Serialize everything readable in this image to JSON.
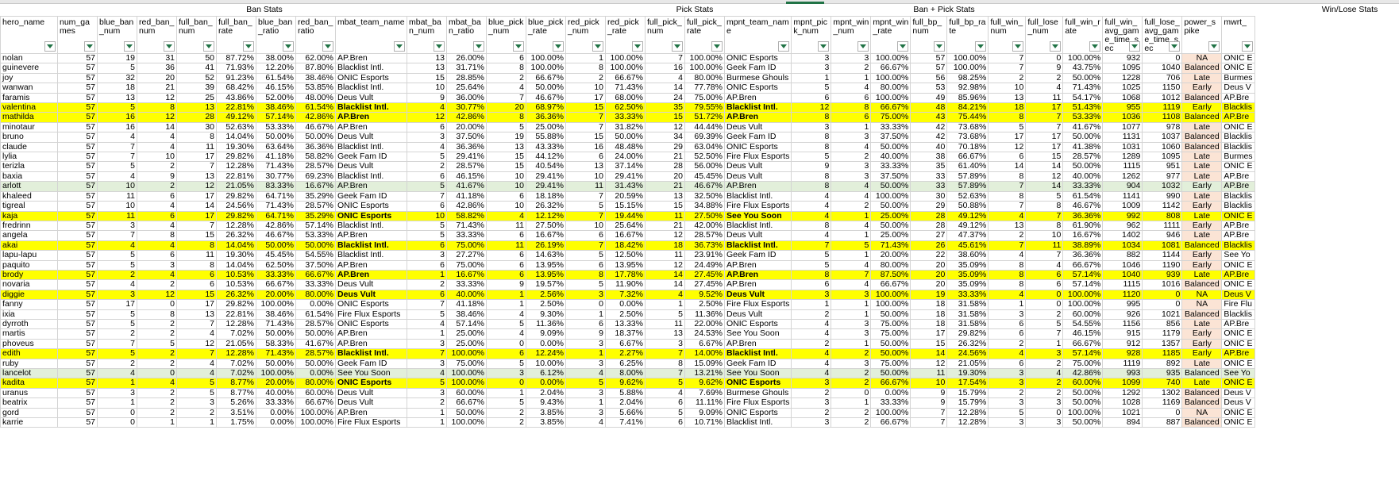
{
  "group_headers": {
    "ban_stats": "Ban Stats",
    "pick_stats": "Pick Stats",
    "ban_pick_stats": "Ban + Pick Stats",
    "win_lose_stats": "Win/Lose Stats"
  },
  "columns": [
    "hero_name",
    "num_games",
    "blue_ban_num",
    "red_ban_num",
    "full_ban_num",
    "full_ban_rate",
    "blue_ban_ratio",
    "red_ban_ratio",
    "mbat_team_name",
    "mbat_ban_num",
    "mbat_ban_ratio",
    "blue_pick_num",
    "blue_pick_rate",
    "red_pick_num",
    "red_pick_rate",
    "full_pick_num",
    "full_pick_rate",
    "mpnt_team_name",
    "mpnt_pick_num",
    "mpnt_win_num",
    "mpnt_win_rate",
    "full_bp_num",
    "full_bp_rate",
    "full_win_num",
    "full_lose_num",
    "full_win_rate",
    "full_win_avg_game_time_sec",
    "full_lose_avg_game_time_sec",
    "power_spike",
    "mwrt_"
  ],
  "rows": [
    [
      "nolan",
      "57",
      "19",
      "31",
      "50",
      "87.72%",
      "38.00%",
      "62.00%",
      "AP.Bren",
      "13",
      "26.00%",
      "6",
      "100.00%",
      "1",
      "100.00%",
      "7",
      "100.00%",
      "ONIC Esports",
      "3",
      "3",
      "100.00%",
      "57",
      "100.00%",
      "7",
      "0",
      "100.00%",
      "932",
      "0",
      "NA",
      "ONIC E"
    ],
    [
      "guinevere",
      "57",
      "5",
      "36",
      "41",
      "71.93%",
      "12.20%",
      "87.80%",
      "Blacklist Intl.",
      "13",
      "31.71%",
      "8",
      "100.00%",
      "8",
      "100.00%",
      "16",
      "100.00%",
      "Geek Fam ID",
      "3",
      "2",
      "66.67%",
      "57",
      "100.00%",
      "7",
      "9",
      "43.75%",
      "1095",
      "1040",
      "Balanced",
      "ONIC E"
    ],
    [
      "joy",
      "57",
      "32",
      "20",
      "52",
      "91.23%",
      "61.54%",
      "38.46%",
      "ONIC Esports",
      "15",
      "28.85%",
      "2",
      "66.67%",
      "2",
      "66.67%",
      "4",
      "80.00%",
      "Burmese Ghouls",
      "1",
      "1",
      "100.00%",
      "56",
      "98.25%",
      "2",
      "2",
      "50.00%",
      "1228",
      "706",
      "Late",
      "Burmes"
    ],
    [
      "wanwan",
      "57",
      "18",
      "21",
      "39",
      "68.42%",
      "46.15%",
      "53.85%",
      "Blacklist Intl.",
      "10",
      "25.64%",
      "4",
      "50.00%",
      "10",
      "71.43%",
      "14",
      "77.78%",
      "ONIC Esports",
      "5",
      "4",
      "80.00%",
      "53",
      "92.98%",
      "10",
      "4",
      "71.43%",
      "1025",
      "1150",
      "Early",
      "Deus V"
    ],
    [
      "faramis",
      "57",
      "13",
      "12",
      "25",
      "43.86%",
      "52.00%",
      "48.00%",
      "Deus Vult",
      "9",
      "36.00%",
      "7",
      "46.67%",
      "17",
      "68.00%",
      "24",
      "75.00%",
      "AP.Bren",
      "6",
      "6",
      "100.00%",
      "49",
      "85.96%",
      "13",
      "11",
      "54.17%",
      "1068",
      "1012",
      "Balanced",
      "AP.Bre"
    ],
    [
      "valentina",
      "57",
      "5",
      "8",
      "13",
      "22.81%",
      "38.46%",
      "61.54%",
      "Blacklist Intl.",
      "4",
      "30.77%",
      "20",
      "68.97%",
      "15",
      "62.50%",
      "35",
      "79.55%",
      "Blacklist Intl.",
      "12",
      "8",
      "66.67%",
      "48",
      "84.21%",
      "18",
      "17",
      "51.43%",
      "955",
      "1119",
      "Early",
      "Blacklis"
    ],
    [
      "mathilda",
      "57",
      "16",
      "12",
      "28",
      "49.12%",
      "57.14%",
      "42.86%",
      "AP.Bren",
      "12",
      "42.86%",
      "8",
      "36.36%",
      "7",
      "33.33%",
      "15",
      "51.72%",
      "AP.Bren",
      "8",
      "6",
      "75.00%",
      "43",
      "75.44%",
      "8",
      "7",
      "53.33%",
      "1036",
      "1108",
      "Balanced",
      "AP.Bre"
    ],
    [
      "minotaur",
      "57",
      "16",
      "14",
      "30",
      "52.63%",
      "53.33%",
      "46.67%",
      "AP.Bren",
      "6",
      "20.00%",
      "5",
      "25.00%",
      "7",
      "31.82%",
      "12",
      "44.44%",
      "Deus Vult",
      "3",
      "1",
      "33.33%",
      "42",
      "73.68%",
      "5",
      "7",
      "41.67%",
      "1077",
      "978",
      "Late",
      "ONIC E"
    ],
    [
      "bruno",
      "57",
      "4",
      "4",
      "8",
      "14.04%",
      "50.00%",
      "50.00%",
      "Deus Vult",
      "3",
      "37.50%",
      "19",
      "55.88%",
      "15",
      "50.00%",
      "34",
      "69.39%",
      "Geek Fam ID",
      "8",
      "3",
      "37.50%",
      "42",
      "73.68%",
      "17",
      "17",
      "50.00%",
      "1131",
      "1037",
      "Balanced",
      "Blacklis"
    ],
    [
      "claude",
      "57",
      "7",
      "4",
      "11",
      "19.30%",
      "63.64%",
      "36.36%",
      "Blacklist Intl.",
      "4",
      "36.36%",
      "13",
      "43.33%",
      "16",
      "48.48%",
      "29",
      "63.04%",
      "ONIC Esports",
      "8",
      "4",
      "50.00%",
      "40",
      "70.18%",
      "12",
      "17",
      "41.38%",
      "1031",
      "1060",
      "Balanced",
      "Blacklis"
    ],
    [
      "lylia",
      "57",
      "7",
      "10",
      "17",
      "29.82%",
      "41.18%",
      "58.82%",
      "Geek Fam ID",
      "5",
      "29.41%",
      "15",
      "44.12%",
      "6",
      "24.00%",
      "21",
      "52.50%",
      "Fire Flux Esports",
      "5",
      "2",
      "40.00%",
      "38",
      "66.67%",
      "6",
      "15",
      "28.57%",
      "1289",
      "1095",
      "Late",
      "Burmes"
    ],
    [
      "terizla",
      "57",
      "5",
      "2",
      "7",
      "12.28%",
      "71.43%",
      "28.57%",
      "Deus Vult",
      "2",
      "28.57%",
      "15",
      "40.54%",
      "13",
      "37.14%",
      "28",
      "56.00%",
      "Deus Vult",
      "9",
      "3",
      "33.33%",
      "35",
      "61.40%",
      "14",
      "14",
      "50.00%",
      "1115",
      "951",
      "Late",
      "ONIC E"
    ],
    [
      "baxia",
      "57",
      "4",
      "9",
      "13",
      "22.81%",
      "30.77%",
      "69.23%",
      "Blacklist Intl.",
      "6",
      "46.15%",
      "10",
      "29.41%",
      "10",
      "29.41%",
      "20",
      "45.45%",
      "Deus Vult",
      "8",
      "3",
      "37.50%",
      "33",
      "57.89%",
      "8",
      "12",
      "40.00%",
      "1262",
      "977",
      "Late",
      "AP.Bre"
    ],
    [
      "arlott",
      "57",
      "10",
      "2",
      "12",
      "21.05%",
      "83.33%",
      "16.67%",
      "AP.Bren",
      "5",
      "41.67%",
      "10",
      "29.41%",
      "11",
      "31.43%",
      "21",
      "46.67%",
      "AP.Bren",
      "8",
      "4",
      "50.00%",
      "33",
      "57.89%",
      "7",
      "14",
      "33.33%",
      "904",
      "1032",
      "Early",
      "AP.Bre"
    ],
    [
      "khaleed",
      "57",
      "11",
      "6",
      "17",
      "29.82%",
      "64.71%",
      "35.29%",
      "Geek Fam ID",
      "7",
      "41.18%",
      "6",
      "18.18%",
      "7",
      "20.59%",
      "13",
      "32.50%",
      "Blacklist Intl.",
      "4",
      "4",
      "100.00%",
      "30",
      "52.63%",
      "8",
      "5",
      "61.54%",
      "1141",
      "990",
      "Late",
      "Blacklis"
    ],
    [
      "tigreal",
      "57",
      "10",
      "4",
      "14",
      "24.56%",
      "71.43%",
      "28.57%",
      "ONIC Esports",
      "6",
      "42.86%",
      "10",
      "26.32%",
      "5",
      "15.15%",
      "15",
      "34.88%",
      "Fire Flux Esports",
      "4",
      "2",
      "50.00%",
      "29",
      "50.88%",
      "7",
      "8",
      "46.67%",
      "1009",
      "1142",
      "Early",
      "Blacklis"
    ],
    [
      "kaja",
      "57",
      "11",
      "6",
      "17",
      "29.82%",
      "64.71%",
      "35.29%",
      "ONIC Esports",
      "10",
      "58.82%",
      "4",
      "12.12%",
      "7",
      "19.44%",
      "11",
      "27.50%",
      "See You Soon",
      "4",
      "1",
      "25.00%",
      "28",
      "49.12%",
      "4",
      "7",
      "36.36%",
      "992",
      "808",
      "Late",
      "ONIC E"
    ],
    [
      "fredrinn",
      "57",
      "3",
      "4",
      "7",
      "12.28%",
      "42.86%",
      "57.14%",
      "Blacklist Intl.",
      "5",
      "71.43%",
      "11",
      "27.50%",
      "10",
      "25.64%",
      "21",
      "42.00%",
      "Blacklist Intl.",
      "8",
      "4",
      "50.00%",
      "28",
      "49.12%",
      "13",
      "8",
      "61.90%",
      "962",
      "1111",
      "Early",
      "AP.Bre"
    ],
    [
      "angela",
      "57",
      "7",
      "8",
      "15",
      "26.32%",
      "46.67%",
      "53.33%",
      "AP.Bren",
      "5",
      "33.33%",
      "6",
      "16.67%",
      "6",
      "16.67%",
      "12",
      "28.57%",
      "Deus Vult",
      "4",
      "1",
      "25.00%",
      "27",
      "47.37%",
      "2",
      "10",
      "16.67%",
      "1402",
      "946",
      "Late",
      "AP.Bre"
    ],
    [
      "akai",
      "57",
      "4",
      "4",
      "8",
      "14.04%",
      "50.00%",
      "50.00%",
      "Blacklist Intl.",
      "6",
      "75.00%",
      "11",
      "26.19%",
      "7",
      "18.42%",
      "18",
      "36.73%",
      "Blacklist Intl.",
      "7",
      "5",
      "71.43%",
      "26",
      "45.61%",
      "7",
      "11",
      "38.89%",
      "1034",
      "1081",
      "Balanced",
      "Blacklis"
    ],
    [
      "lapu-lapu",
      "57",
      "5",
      "6",
      "11",
      "19.30%",
      "45.45%",
      "54.55%",
      "Blacklist Intl.",
      "3",
      "27.27%",
      "6",
      "14.63%",
      "5",
      "12.50%",
      "11",
      "23.91%",
      "Geek Fam ID",
      "5",
      "1",
      "20.00%",
      "22",
      "38.60%",
      "4",
      "7",
      "36.36%",
      "882",
      "1144",
      "Early",
      "See Yo"
    ],
    [
      "paquito",
      "57",
      "5",
      "3",
      "8",
      "14.04%",
      "62.50%",
      "37.50%",
      "AP.Bren",
      "6",
      "75.00%",
      "6",
      "13.95%",
      "6",
      "13.95%",
      "12",
      "24.49%",
      "AP.Bren",
      "5",
      "4",
      "80.00%",
      "20",
      "35.09%",
      "8",
      "4",
      "66.67%",
      "1046",
      "1190",
      "Early",
      "ONIC E"
    ],
    [
      "brody",
      "57",
      "2",
      "4",
      "6",
      "10.53%",
      "33.33%",
      "66.67%",
      "AP.Bren",
      "1",
      "16.67%",
      "6",
      "13.95%",
      "8",
      "17.78%",
      "14",
      "27.45%",
      "AP.Bren",
      "8",
      "7",
      "87.50%",
      "20",
      "35.09%",
      "8",
      "6",
      "57.14%",
      "1040",
      "939",
      "Late",
      "AP.Bre"
    ],
    [
      "novaria",
      "57",
      "4",
      "2",
      "6",
      "10.53%",
      "66.67%",
      "33.33%",
      "Deus Vult",
      "2",
      "33.33%",
      "9",
      "19.57%",
      "5",
      "11.90%",
      "14",
      "27.45%",
      "AP.Bren",
      "6",
      "4",
      "66.67%",
      "20",
      "35.09%",
      "8",
      "6",
      "57.14%",
      "1115",
      "1016",
      "Balanced",
      "ONIC E"
    ],
    [
      "diggie",
      "57",
      "3",
      "12",
      "15",
      "26.32%",
      "20.00%",
      "80.00%",
      "Deus Vult",
      "6",
      "40.00%",
      "1",
      "2.56%",
      "3",
      "7.32%",
      "4",
      "9.52%",
      "Deus Vult",
      "3",
      "3",
      "100.00%",
      "19",
      "33.33%",
      "4",
      "0",
      "100.00%",
      "1120",
      "0",
      "NA",
      "Deus V"
    ],
    [
      "fanny",
      "57",
      "17",
      "0",
      "17",
      "29.82%",
      "100.00%",
      "0.00%",
      "ONIC Esports",
      "7",
      "41.18%",
      "1",
      "2.50%",
      "0",
      "0.00%",
      "1",
      "2.50%",
      "Fire Flux Esports",
      "1",
      "1",
      "100.00%",
      "18",
      "31.58%",
      "1",
      "0",
      "100.00%",
      "995",
      "0",
      "NA",
      "Fire Flu"
    ],
    [
      "ixia",
      "57",
      "5",
      "8",
      "13",
      "22.81%",
      "38.46%",
      "61.54%",
      "Fire Flux Esports",
      "5",
      "38.46%",
      "4",
      "9.30%",
      "1",
      "2.50%",
      "5",
      "11.36%",
      "Deus Vult",
      "2",
      "1",
      "50.00%",
      "18",
      "31.58%",
      "3",
      "2",
      "60.00%",
      "926",
      "1021",
      "Balanced",
      "Blacklis"
    ],
    [
      "dyrroth",
      "57",
      "5",
      "2",
      "7",
      "12.28%",
      "71.43%",
      "28.57%",
      "ONIC Esports",
      "4",
      "57.14%",
      "5",
      "11.36%",
      "6",
      "13.33%",
      "11",
      "22.00%",
      "ONIC Esports",
      "4",
      "3",
      "75.00%",
      "18",
      "31.58%",
      "6",
      "5",
      "54.55%",
      "1156",
      "856",
      "Late",
      "AP.Bre"
    ],
    [
      "martis",
      "57",
      "2",
      "2",
      "4",
      "7.02%",
      "50.00%",
      "50.00%",
      "AP.Bren",
      "1",
      "25.00%",
      "4",
      "9.09%",
      "9",
      "18.37%",
      "13",
      "24.53%",
      "See You Soon",
      "4",
      "3",
      "75.00%",
      "17",
      "29.82%",
      "6",
      "7",
      "46.15%",
      "915",
      "1179",
      "Early",
      "ONIC E"
    ],
    [
      "phoveus",
      "57",
      "7",
      "5",
      "12",
      "21.05%",
      "58.33%",
      "41.67%",
      "AP.Bren",
      "3",
      "25.00%",
      "0",
      "0.00%",
      "3",
      "6.67%",
      "3",
      "6.67%",
      "AP.Bren",
      "2",
      "1",
      "50.00%",
      "15",
      "26.32%",
      "2",
      "1",
      "66.67%",
      "912",
      "1357",
      "Early",
      "ONIC E"
    ],
    [
      "edith",
      "57",
      "5",
      "2",
      "7",
      "12.28%",
      "71.43%",
      "28.57%",
      "Blacklist Intl.",
      "7",
      "100.00%",
      "6",
      "12.24%",
      "1",
      "2.27%",
      "7",
      "14.00%",
      "Blacklist Intl.",
      "4",
      "2",
      "50.00%",
      "14",
      "24.56%",
      "4",
      "3",
      "57.14%",
      "928",
      "1185",
      "Early",
      "AP.Bre"
    ],
    [
      "ruby",
      "57",
      "2",
      "2",
      "4",
      "7.02%",
      "50.00%",
      "50.00%",
      "Geek Fam ID",
      "3",
      "75.00%",
      "5",
      "10.00%",
      "3",
      "6.25%",
      "8",
      "15.09%",
      "Geek Fam ID",
      "4",
      "3",
      "75.00%",
      "12",
      "21.05%",
      "6",
      "2",
      "75.00%",
      "1119",
      "892",
      "Late",
      "ONIC E"
    ],
    [
      "lancelot",
      "57",
      "4",
      "0",
      "4",
      "7.02%",
      "100.00%",
      "0.00%",
      "See You Soon",
      "4",
      "100.00%",
      "3",
      "6.12%",
      "4",
      "8.00%",
      "7",
      "13.21%",
      "See You Soon",
      "4",
      "2",
      "50.00%",
      "11",
      "19.30%",
      "3",
      "4",
      "42.86%",
      "993",
      "935",
      "Balanced",
      "See Yo"
    ],
    [
      "kadita",
      "57",
      "1",
      "4",
      "5",
      "8.77%",
      "20.00%",
      "80.00%",
      "ONIC Esports",
      "5",
      "100.00%",
      "0",
      "0.00%",
      "5",
      "9.62%",
      "5",
      "9.62%",
      "ONIC Esports",
      "3",
      "2",
      "66.67%",
      "10",
      "17.54%",
      "3",
      "2",
      "60.00%",
      "1099",
      "740",
      "Late",
      "ONIC E"
    ],
    [
      "uranus",
      "57",
      "3",
      "2",
      "5",
      "8.77%",
      "40.00%",
      "60.00%",
      "Deus Vult",
      "3",
      "60.00%",
      "1",
      "2.04%",
      "3",
      "5.88%",
      "4",
      "7.69%",
      "Burmese Ghouls",
      "2",
      "0",
      "0.00%",
      "9",
      "15.79%",
      "2",
      "2",
      "50.00%",
      "1292",
      "1302",
      "Balanced",
      "Deus V"
    ],
    [
      "beatrix",
      "57",
      "1",
      "2",
      "3",
      "5.26%",
      "33.33%",
      "66.67%",
      "Deus Vult",
      "2",
      "66.67%",
      "5",
      "9.43%",
      "1",
      "2.04%",
      "6",
      "11.11%",
      "Fire Flux Esports",
      "3",
      "1",
      "33.33%",
      "9",
      "15.79%",
      "3",
      "3",
      "50.00%",
      "1028",
      "1169",
      "Balanced",
      "Deus V"
    ],
    [
      "gord",
      "57",
      "0",
      "2",
      "2",
      "3.51%",
      "0.00%",
      "100.00%",
      "AP.Bren",
      "1",
      "50.00%",
      "2",
      "3.85%",
      "3",
      "5.66%",
      "5",
      "9.09%",
      "ONIC Esports",
      "2",
      "2",
      "100.00%",
      "7",
      "12.28%",
      "5",
      "0",
      "100.00%",
      "1021",
      "0",
      "NA",
      "ONIC E"
    ],
    [
      "karrie",
      "57",
      "0",
      "1",
      "1",
      "1.75%",
      "0.00%",
      "100.00%",
      "Fire Flux Esports",
      "1",
      "100.00%",
      "2",
      "3.85%",
      "4",
      "7.41%",
      "6",
      "10.71%",
      "Blacklist Intl.",
      "3",
      "2",
      "66.67%",
      "7",
      "12.28%",
      "3",
      "3",
      "50.00%",
      "894",
      "887",
      "Balanced",
      "ONIC E"
    ]
  ],
  "highlight_rows": {
    "yellow": [
      "valentina",
      "mathilda",
      "kaja",
      "akai",
      "brody",
      "diggie",
      "edith",
      "kadita"
    ],
    "green": [
      "arlott",
      "lancelot"
    ]
  },
  "colors": {
    "yellow": "#ffff00",
    "green": "#e2efda",
    "power_spike_bg": "#fbe4d5",
    "filter_arrow": "#217346"
  }
}
